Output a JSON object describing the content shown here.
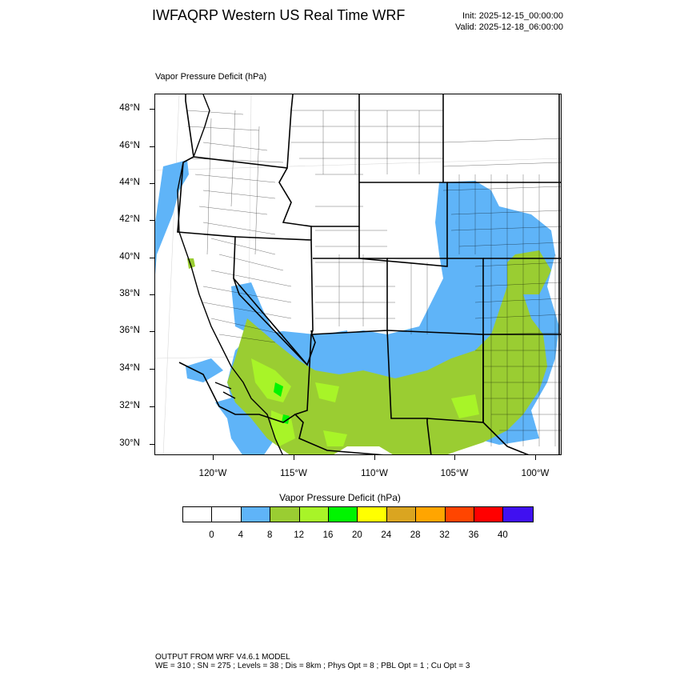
{
  "header": {
    "title": "IWFAQRP Western US Real Time WRF",
    "init": "Init: 2025-12-15_00:00:00",
    "valid": "Valid: 2025-12-18_06:00:00"
  },
  "map": {
    "field_label": "Vapor Pressure Deficit   (hPa)",
    "lat_labels": [
      "48°N",
      "46°N",
      "44°N",
      "42°N",
      "40°N",
      "38°N",
      "36°N",
      "34°N",
      "32°N",
      "30°N"
    ],
    "lon_labels": [
      "120°W",
      "115°W",
      "110°W",
      "105°W",
      "100°W"
    ],
    "layers": {
      "state_color": "#000000",
      "county_color": "#000000",
      "graticule_color": "#d9d9d9"
    }
  },
  "colorbar": {
    "title": "Vapor Pressure Deficit  (hPa)",
    "colors": [
      "#ffffff",
      "#ffffff",
      "#5fb4f8",
      "#9acd32",
      "#a8f428",
      "#00f500",
      "#ffff00",
      "#daa520",
      "#ffa500",
      "#ff4500",
      "#ff0000",
      "#4010f0"
    ],
    "labels": [
      "0",
      "4",
      "8",
      "12",
      "16",
      "20",
      "24",
      "28",
      "32",
      "36",
      "40"
    ]
  },
  "footer": {
    "line1": "OUTPUT FROM WRF V4.6.1 MODEL",
    "line2": "WE = 310 ; SN = 275 ; Levels = 38 ; Dis = 8km ; Phys Opt = 8 ; PBL Opt = 1 ; Cu Opt = 3"
  }
}
